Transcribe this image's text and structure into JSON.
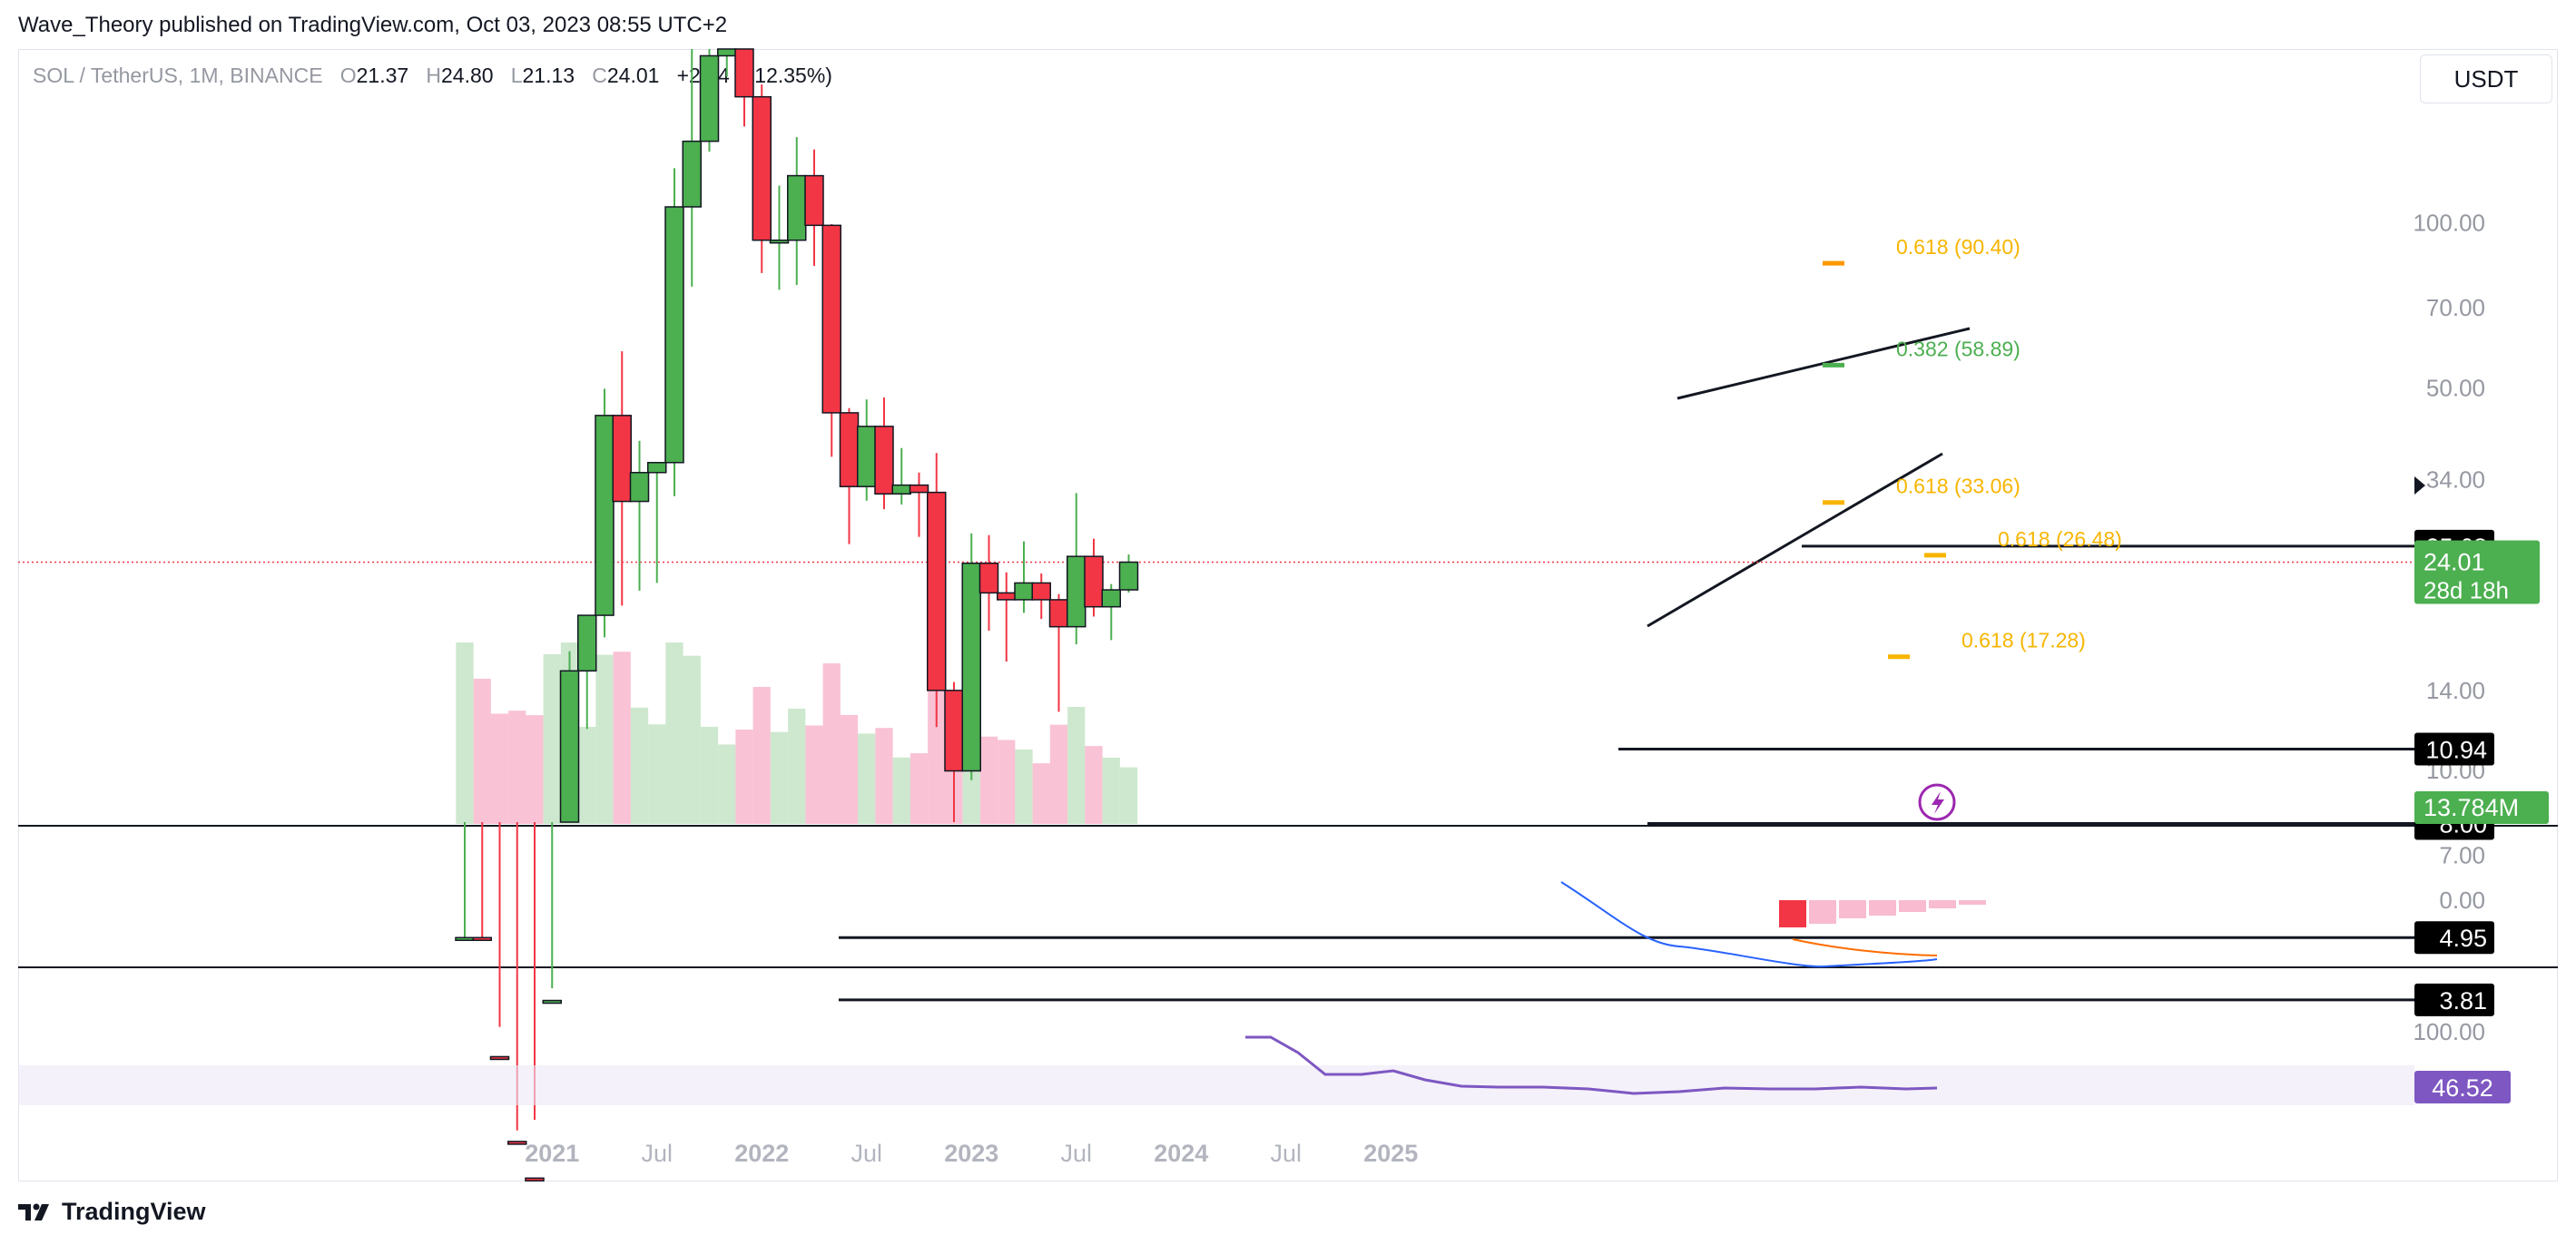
{
  "header": {
    "published_by": "Wave_Theory published on TradingView.com, Oct 03, 2023 08:55 UTC+2"
  },
  "legend": {
    "symbol": "SOL / TetherUS, 1M, BINANCE",
    "o_label": "O",
    "o": "21.37",
    "h_label": "H",
    "h": "24.80",
    "l_label": "L",
    "l": "21.13",
    "c_label": "C",
    "c": "24.01",
    "change": "+2.64 (+12.35%)"
  },
  "currency_button": "USDT",
  "footer": {
    "brand": "TradingView",
    "logo_icon": "tradingview-logo-icon"
  },
  "colors": {
    "up": "#4caf50",
    "down": "#f23645",
    "fib_gold": "#f7b500",
    "fib_orange": "#ff9800",
    "fib_green": "#4caf50",
    "macd": "#2962ff",
    "signal": "#ff6d00",
    "rsi": "#7e57c2"
  },
  "chart_data": [
    {
      "type": "candlestick",
      "scale": "log",
      "y_axis_ticks": [
        "100.00",
        "70.00",
        "50.00",
        "34.00",
        "14.00",
        "10.00",
        "7.00",
        "4.95"
      ],
      "x_axis_ticks": [
        "2021",
        "Jul",
        "2022",
        "Jul",
        "2023",
        "Jul",
        "2024",
        "Jul",
        "2025"
      ],
      "candles": [
        {
          "t": "2020-08",
          "o": 2.2,
          "h": 4.95,
          "l": 1.2,
          "c": 4.95
        },
        {
          "t": "2020-09",
          "o": 4.95,
          "h": 4.95,
          "l": 2.1,
          "c": 3.0
        },
        {
          "t": "2020-10",
          "o": 3.0,
          "h": 3.4,
          "l": 1.9,
          "c": 2.1
        },
        {
          "t": "2020-11",
          "o": 2.1,
          "h": 2.2,
          "l": 1.2,
          "c": 1.8
        },
        {
          "t": "2020-12",
          "o": 1.8,
          "h": 2.3,
          "l": 1.3,
          "c": 1.55
        },
        {
          "t": "2021-01",
          "o": 1.55,
          "h": 4.0,
          "l": 1.4,
          "c": 3.8
        },
        {
          "t": "2021-02",
          "o": 3.8,
          "h": 16.5,
          "l": 3.6,
          "c": 15.2
        },
        {
          "t": "2021-03",
          "o": 15.2,
          "h": 19.2,
          "l": 11.9,
          "c": 19.2
        },
        {
          "t": "2021-04",
          "o": 19.2,
          "h": 49.8,
          "l": 17.5,
          "c": 44.5
        },
        {
          "t": "2021-05",
          "o": 44.5,
          "h": 58.3,
          "l": 20.0,
          "c": 31.0
        },
        {
          "t": "2021-06",
          "o": 31.0,
          "h": 40.0,
          "l": 21.3,
          "c": 35.0
        },
        {
          "t": "2021-07",
          "o": 35.0,
          "h": 36.2,
          "l": 22.0,
          "c": 36.5
        },
        {
          "t": "2021-08",
          "o": 36.5,
          "h": 125.9,
          "l": 31.7,
          "c": 107.0
        },
        {
          "t": "2021-09",
          "o": 107.0,
          "h": 216.0,
          "l": 76.5,
          "c": 141.0
        },
        {
          "t": "2021-10",
          "o": 141.0,
          "h": 218.0,
          "l": 135.0,
          "c": 202.0
        },
        {
          "t": "2021-11",
          "o": 202.0,
          "h": 259.9,
          "l": 185.0,
          "c": 208.0
        },
        {
          "t": "2021-12",
          "o": 208.0,
          "h": 237.0,
          "l": 150.0,
          "c": 170.0
        },
        {
          "t": "2022-01",
          "o": 170.0,
          "h": 179.0,
          "l": 81.0,
          "c": 93.0
        },
        {
          "t": "2022-02",
          "o": 93.0,
          "h": 117.0,
          "l": 75.5,
          "c": 93.0
        },
        {
          "t": "2022-03",
          "o": 93.0,
          "h": 143.5,
          "l": 77.0,
          "c": 122.0
        },
        {
          "t": "2022-04",
          "o": 122.0,
          "h": 136.2,
          "l": 83.5,
          "c": 99.0
        },
        {
          "t": "2022-05",
          "o": 99.0,
          "h": 99.5,
          "l": 37.4,
          "c": 45.0
        },
        {
          "t": "2022-06",
          "o": 45.0,
          "h": 45.9,
          "l": 25.9,
          "c": 33.0
        },
        {
          "t": "2022-07",
          "o": 33.0,
          "h": 47.6,
          "l": 31.1,
          "c": 42.5
        },
        {
          "t": "2022-08",
          "o": 42.5,
          "h": 48.0,
          "l": 30.0,
          "c": 32.0
        },
        {
          "t": "2022-09",
          "o": 32.0,
          "h": 38.8,
          "l": 30.6,
          "c": 33.2
        },
        {
          "t": "2022-10",
          "o": 33.2,
          "h": 35.0,
          "l": 26.7,
          "c": 32.2
        },
        {
          "t": "2022-11",
          "o": 32.2,
          "h": 38.0,
          "l": 12.0,
          "c": 14.0
        },
        {
          "t": "2022-12",
          "o": 14.0,
          "h": 14.5,
          "l": 8.0,
          "c": 9.98
        },
        {
          "t": "2023-01",
          "o": 9.98,
          "h": 27.1,
          "l": 9.6,
          "c": 23.9
        },
        {
          "t": "2023-02",
          "o": 23.9,
          "h": 26.9,
          "l": 18.0,
          "c": 21.1
        },
        {
          "t": "2023-03",
          "o": 21.1,
          "h": 23.0,
          "l": 15.8,
          "c": 20.5
        },
        {
          "t": "2023-04",
          "o": 20.5,
          "h": 26.2,
          "l": 19.4,
          "c": 22.0
        },
        {
          "t": "2023-05",
          "o": 22.0,
          "h": 22.9,
          "l": 18.9,
          "c": 20.5
        },
        {
          "t": "2023-06",
          "o": 20.5,
          "h": 21.0,
          "l": 12.8,
          "c": 18.3
        },
        {
          "t": "2023-07",
          "o": 18.3,
          "h": 32.1,
          "l": 17.0,
          "c": 24.6
        },
        {
          "t": "2023-08",
          "o": 24.6,
          "h": 26.5,
          "l": 19.1,
          "c": 19.9
        },
        {
          "t": "2023-09",
          "o": 19.9,
          "h": 21.9,
          "l": 17.3,
          "c": 21.37
        },
        {
          "t": "2023-10",
          "o": 21.37,
          "h": 24.8,
          "l": 21.13,
          "c": 24.01
        }
      ],
      "volume_last": "13.784M",
      "price_labels": [
        {
          "value": 25.68,
          "text": "25.68"
        },
        {
          "value": 10.94,
          "text": "10.94"
        },
        {
          "value": 8.0,
          "text": "8.00"
        },
        {
          "value": 4.95,
          "text": "4.95"
        },
        {
          "value": 3.81,
          "text": "3.81"
        }
      ],
      "current_price": {
        "value": 24.01,
        "text": "24.01",
        "countdown": "28d 18h"
      },
      "fib_levels": [
        {
          "ratio": "0.618",
          "value": 90.4,
          "text": "0.618 (90.40)"
        },
        {
          "ratio": "0.382",
          "value": 58.89,
          "text": "0.382 (58.89)"
        },
        {
          "ratio": "0.618",
          "value": 33.06,
          "text": "0.618 (33.06)"
        },
        {
          "ratio": "0.618",
          "value": 26.48,
          "text": "0.618 (26.48)"
        },
        {
          "ratio": "0.618",
          "value": 17.28,
          "text": "0.618 (17.28)"
        }
      ]
    },
    {
      "type": "line",
      "name": "MACD",
      "axis_tick": "0.00"
    },
    {
      "type": "line",
      "name": "RSI",
      "axis_tick": "100.00",
      "current_value": "46.52"
    }
  ]
}
